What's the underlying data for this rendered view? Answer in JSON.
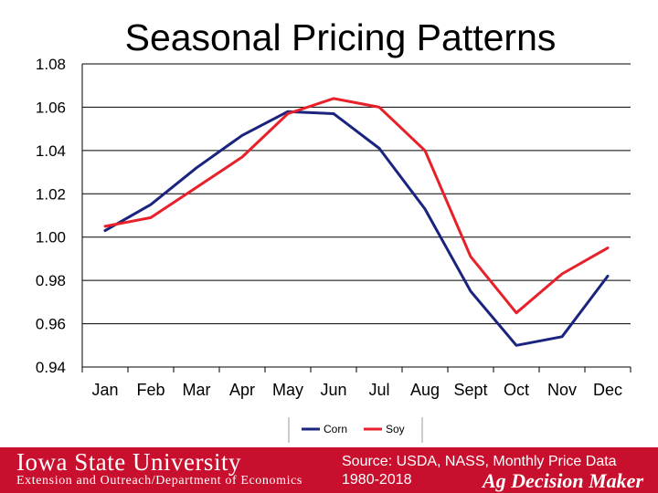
{
  "slide": {
    "title": "Seasonal Pricing Patterns"
  },
  "chart_data": {
    "type": "line",
    "title": "Seasonal Pricing Patterns",
    "xlabel": "",
    "ylabel": "",
    "categories": [
      "Jan",
      "Feb",
      "Mar",
      "Apr",
      "May",
      "Jun",
      "Jul",
      "Aug",
      "Sept",
      "Oct",
      "Nov",
      "Dec"
    ],
    "ylim": [
      0.94,
      1.08
    ],
    "yticks": [
      "0.94",
      "0.96",
      "0.98",
      "1.00",
      "1.02",
      "1.04",
      "1.06",
      "1.08"
    ],
    "grid": true,
    "legend_position": "bottom",
    "series": [
      {
        "name": "Corn",
        "color": "#1a237e",
        "values": [
          1.003,
          1.015,
          1.032,
          1.047,
          1.058,
          1.057,
          1.041,
          1.013,
          0.975,
          0.95,
          0.954,
          0.982
        ]
      },
      {
        "name": "Soy",
        "color": "#e8202a",
        "values": [
          1.005,
          1.009,
          1.023,
          1.037,
          1.057,
          1.064,
          1.06,
          1.04,
          0.991,
          0.965,
          0.983,
          0.995
        ]
      }
    ]
  },
  "footer": {
    "university": "Iowa State University",
    "extension": "Extension and Outreach/Department of Economics",
    "source_line1": "Source: USDA, NASS, Monthly Price Data",
    "source_line2": "1980-2018",
    "brand": "Ag Decision Maker",
    "background_color": "#c8102e"
  }
}
